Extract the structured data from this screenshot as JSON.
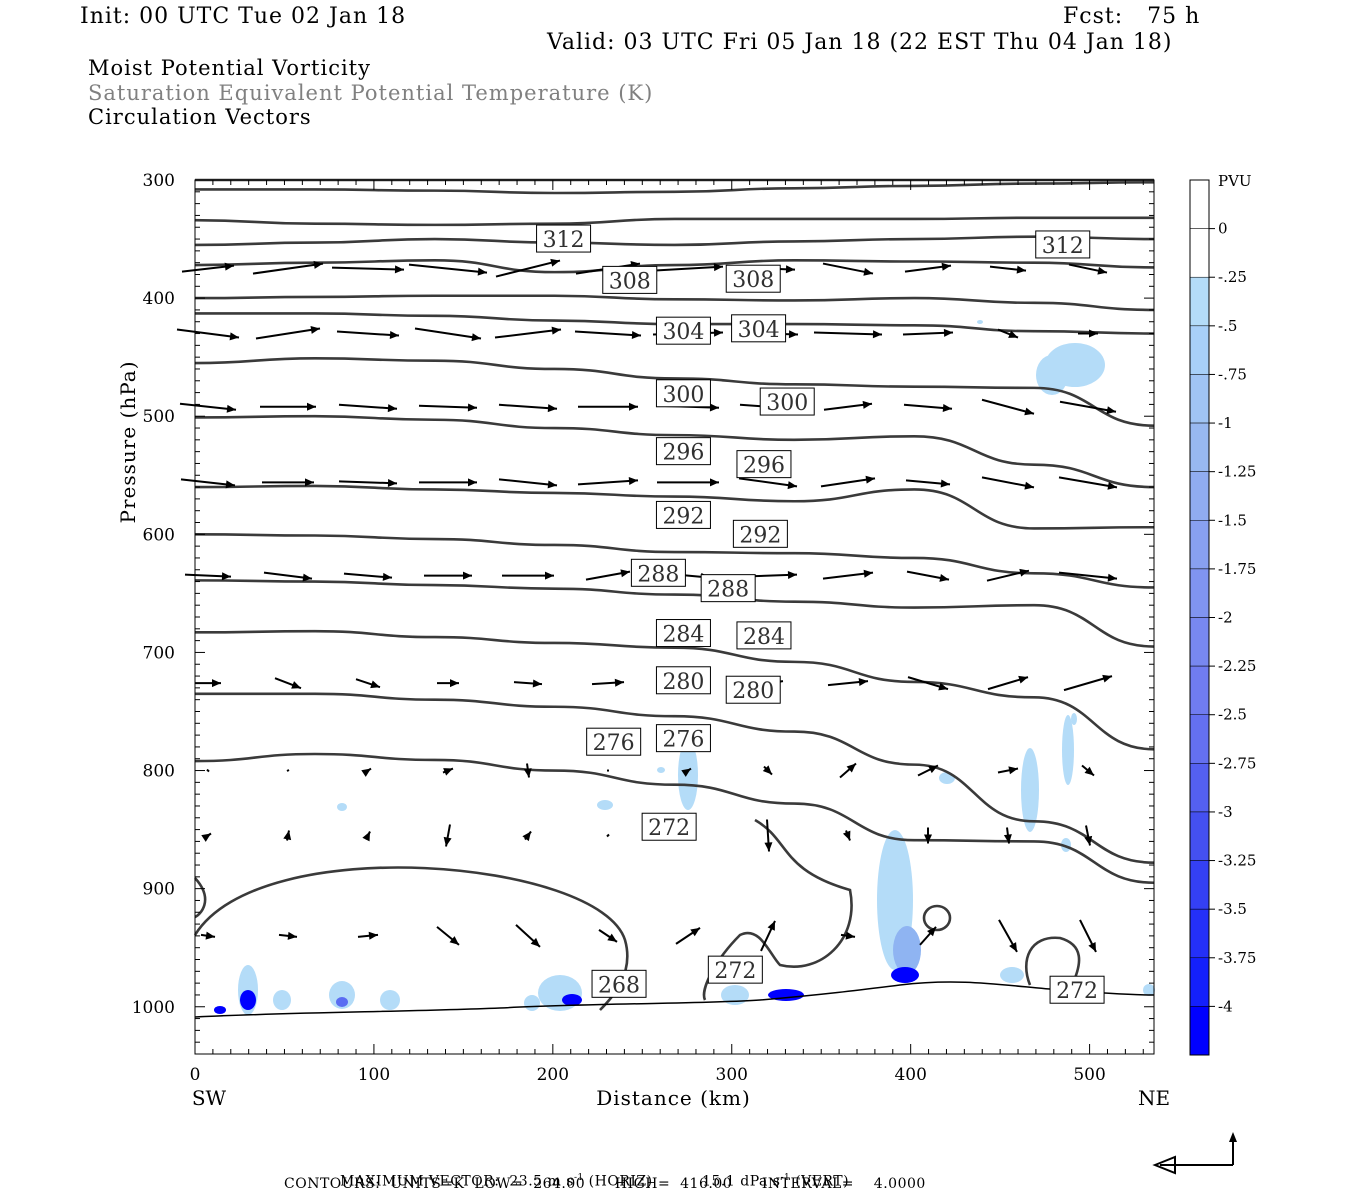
{
  "header": {
    "init": "Init: 00 UTC Tue 02 Jan 18",
    "fcst": "Fcst:   75 h",
    "valid": "Valid: 03 UTC Fri 05 Jan 18 (22 EST Thu 04 Jan 18)",
    "fields": [
      "Moist Potential Vorticity",
      "Saturation Equivalent Potential Temperature (K)",
      "Circulation Vectors"
    ]
  },
  "colors": {
    "contour": "#3a3a3a",
    "secondary_text": "#808080",
    "pv_fill_light": "#b4dcf8",
    "pv_fill_dark": "#0000ff"
  },
  "chart_data": {
    "type": "cross-section",
    "xlabel": "Distance (km)",
    "ylabel": "Pressure (hPa)",
    "x_ticks": [
      0,
      100,
      200,
      300,
      400,
      500
    ],
    "y_ticks": [
      300,
      400,
      500,
      600,
      700,
      800,
      900,
      1000
    ],
    "xlim": [
      0,
      536
    ],
    "ylim": [
      300,
      1040
    ],
    "left_end_label": "SW",
    "right_end_label": "NE",
    "colorbar": {
      "unit": "PVU",
      "ticks": [
        "0",
        "-.25",
        "-.5",
        "-.75",
        "-1",
        "-1.25",
        "-1.5",
        "-1.75",
        "-2",
        "-2.25",
        "-2.5",
        "-2.75",
        "-3",
        "-3.25",
        "-3.5",
        "-3.75",
        "-4"
      ],
      "colors": [
        "#ffffff",
        "#ffffff",
        "#b4dcf8",
        "#a8d0f8",
        "#a0c4f4",
        "#98b8f0",
        "#90acf0",
        "#88a0f0",
        "#8094f0",
        "#7888f0",
        "#707cf0",
        "#6470f0",
        "#5460f0",
        "#4450f0",
        "#3440f4",
        "#2430f8",
        "#1420fc",
        "#0000ff"
      ]
    },
    "contour_labels": [
      {
        "text": "312",
        "x": 206,
        "p": 350
      },
      {
        "text": "312",
        "x": 485,
        "p": 355
      },
      {
        "text": "308",
        "x": 243,
        "p": 385
      },
      {
        "text": "308",
        "x": 312,
        "p": 384
      },
      {
        "text": "304",
        "x": 273,
        "p": 428
      },
      {
        "text": "304",
        "x": 315,
        "p": 426
      },
      {
        "text": "300",
        "x": 273,
        "p": 481
      },
      {
        "text": "300",
        "x": 331,
        "p": 488
      },
      {
        "text": "296",
        "x": 273,
        "p": 530
      },
      {
        "text": "296",
        "x": 318,
        "p": 541
      },
      {
        "text": "292",
        "x": 273,
        "p": 584
      },
      {
        "text": "292",
        "x": 316,
        "p": 600
      },
      {
        "text": "288",
        "x": 259,
        "p": 633
      },
      {
        "text": "288",
        "x": 298,
        "p": 646
      },
      {
        "text": "284",
        "x": 273,
        "p": 684
      },
      {
        "text": "284",
        "x": 318,
        "p": 686
      },
      {
        "text": "280",
        "x": 273,
        "p": 724
      },
      {
        "text": "280",
        "x": 312,
        "p": 732
      },
      {
        "text": "276",
        "x": 234,
        "p": 776
      },
      {
        "text": "276",
        "x": 273,
        "p": 773
      },
      {
        "text": "272",
        "x": 265,
        "p": 848
      },
      {
        "text": "268",
        "x": 237,
        "p": 981
      },
      {
        "text": "272",
        "x": 302,
        "p": 969
      },
      {
        "text": "272",
        "x": 493,
        "p": 986
      }
    ],
    "theta_e_contours": [
      {
        "p": [
          300,
          300,
          300,
          300,
          300,
          300,
          300,
          300,
          300
        ]
      },
      {
        "p": [
          308,
          308,
          309,
          311,
          310,
          307,
          305,
          303,
          302
        ]
      },
      {
        "p": [
          334,
          337,
          338,
          337,
          333,
          333,
          333,
          332,
          332
        ]
      },
      {
        "p": [
          355,
          353,
          350,
          353,
          355,
          352,
          350,
          348,
          350
        ]
      },
      {
        "p": [
          372,
          370,
          368,
          378,
          372,
          368,
          369,
          370,
          374
        ]
      },
      {
        "p": [
          400,
          399,
          398,
          398,
          401,
          402,
          400,
          404,
          410
        ]
      },
      {
        "p": [
          413,
          413,
          415,
          419,
          422,
          422,
          423,
          428,
          430
        ]
      },
      {
        "p": [
          455,
          451,
          453,
          460,
          468,
          473,
          475,
          476,
          508
        ]
      },
      {
        "p": [
          501,
          500,
          503,
          510,
          516,
          520,
          517,
          541,
          560
        ]
      },
      {
        "p": [
          560,
          559,
          562,
          565,
          568,
          572,
          562,
          595,
          594
        ]
      },
      {
        "p": [
          600,
          601,
          604,
          609,
          615,
          616,
          620,
          633,
          645
        ]
      },
      {
        "p": [
          639,
          640,
          643,
          646,
          651,
          657,
          662,
          660,
          695
        ]
      },
      {
        "p": [
          683,
          682,
          687,
          692,
          696,
          708,
          725,
          738,
          782
        ]
      },
      {
        "p": [
          735,
          735,
          740,
          746,
          754,
          767,
          795,
          843,
          878
        ]
      },
      {
        "p": [
          792,
          786,
          791,
          800,
          812,
          828,
          859,
          860,
          895
        ]
      }
    ],
    "vector_rows_hPa": [
      375,
      430,
      492,
      556,
      635,
      726,
      800,
      855,
      940
    ],
    "footer": {
      "max_vector_label": "MAXIMUM VECTOR:",
      "max_horiz": "23.5 m s",
      "horiz_tag": "(HORIZ)",
      "max_vert": "15.1 dPa s",
      "vert_tag": "(VERT)",
      "exponent": "-1",
      "contours": "CONTOURS:  UNITS=K  LOW=  264.00      HIGH=  416.00      INTERVAL=    4.0000"
    }
  }
}
